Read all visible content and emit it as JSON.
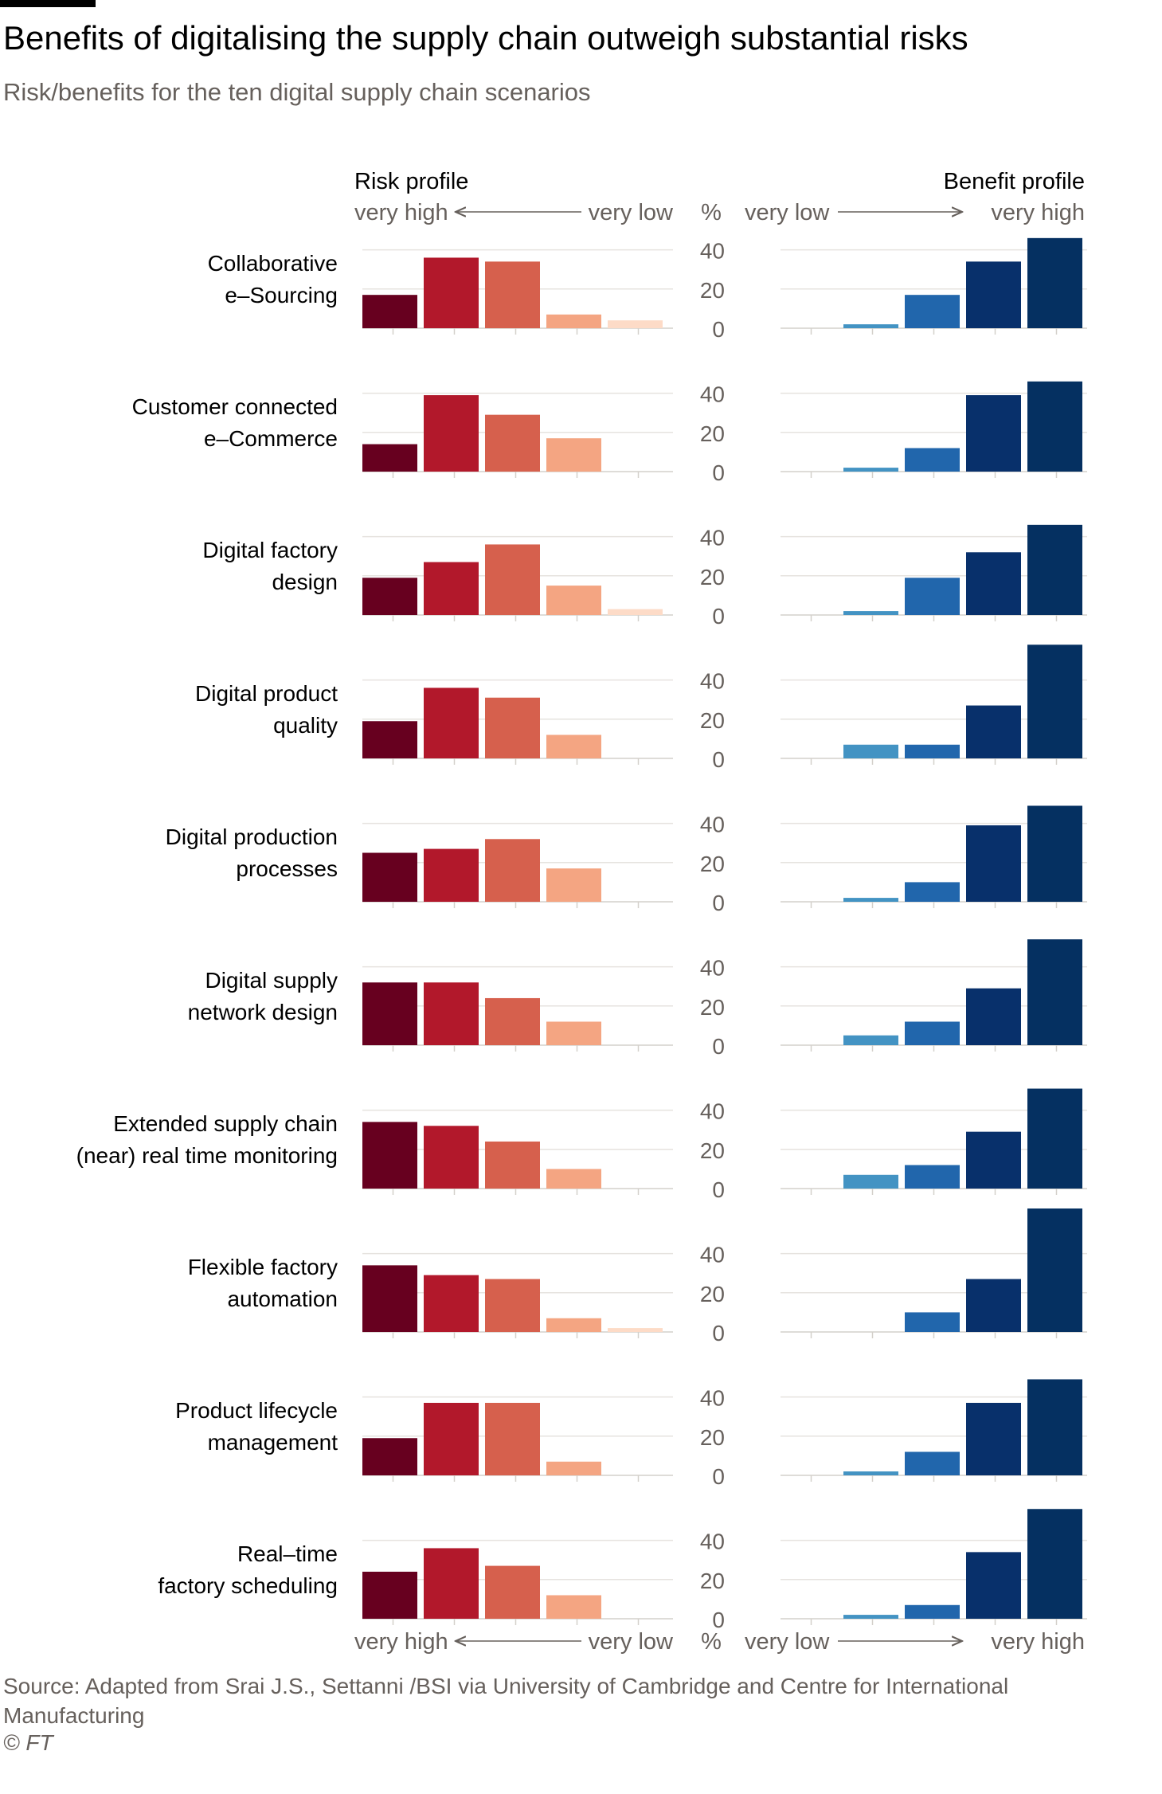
{
  "header": {
    "title": "Benefits of digitalising the supply chain outweigh substantial risks",
    "subtitle": "Risk/benefits for the ten digital supply chain scenarios"
  },
  "footer": {
    "source": "Source: Adapted from Srai J.S., Settanni /BSI via University of Cambridge and Centre for International Manufacturing",
    "credit": "© FT"
  },
  "chart_data": {
    "type": "bar",
    "risk_profile": {
      "title": "Risk profile",
      "axis_left": "very high",
      "axis_right": "very low",
      "colors": [
        "#67001f",
        "#b2182b",
        "#d6604d",
        "#f4a582",
        "#fddbc7"
      ]
    },
    "benefit_profile": {
      "title": "Benefit profile",
      "axis_left": "very low",
      "axis_right": "very high",
      "colors": [
        "#92c5de",
        "#4393c3",
        "#2166ac",
        "#08306b",
        "#053061"
      ]
    },
    "unit": "%",
    "ylim": [
      0,
      60
    ],
    "y_ticks": [
      0,
      20,
      40
    ],
    "scenarios": [
      {
        "name_lines": [
          "Collaborative",
          "e–Sourcing"
        ],
        "risk": [
          17,
          36,
          34,
          7,
          4
        ],
        "benefit": [
          0,
          2,
          17,
          34,
          46
        ]
      },
      {
        "name_lines": [
          "Customer connected",
          "e–Commerce"
        ],
        "risk": [
          14,
          39,
          29,
          17,
          0
        ],
        "benefit": [
          0,
          2,
          12,
          39,
          46
        ]
      },
      {
        "name_lines": [
          "Digital factory",
          "design"
        ],
        "risk": [
          19,
          27,
          36,
          15,
          3
        ],
        "benefit": [
          0,
          2,
          19,
          32,
          46
        ]
      },
      {
        "name_lines": [
          "Digital product",
          "quality"
        ],
        "risk": [
          19,
          36,
          31,
          12,
          0
        ],
        "benefit": [
          0,
          7,
          7,
          27,
          58
        ]
      },
      {
        "name_lines": [
          "Digital production",
          "processes"
        ],
        "risk": [
          25,
          27,
          32,
          17,
          0
        ],
        "benefit": [
          0,
          2,
          10,
          39,
          49
        ]
      },
      {
        "name_lines": [
          "Digital supply",
          "network design"
        ],
        "risk": [
          32,
          32,
          24,
          12,
          0
        ],
        "benefit": [
          0,
          5,
          12,
          29,
          54
        ]
      },
      {
        "name_lines": [
          "Extended supply chain",
          "(near) real time monitoring"
        ],
        "risk": [
          34,
          32,
          24,
          10,
          0
        ],
        "benefit": [
          0,
          7,
          12,
          29,
          51
        ]
      },
      {
        "name_lines": [
          "Flexible factory",
          "automation"
        ],
        "risk": [
          34,
          29,
          27,
          7,
          2
        ],
        "benefit": [
          0,
          0,
          10,
          27,
          63
        ]
      },
      {
        "name_lines": [
          "Product lifecycle",
          "management"
        ],
        "risk": [
          19,
          37,
          37,
          7,
          0
        ],
        "benefit": [
          0,
          2,
          12,
          37,
          49
        ]
      },
      {
        "name_lines": [
          "Real–time",
          "factory scheduling"
        ],
        "risk": [
          24,
          36,
          27,
          12,
          0
        ],
        "benefit": [
          0,
          2,
          7,
          34,
          56
        ]
      }
    ]
  }
}
